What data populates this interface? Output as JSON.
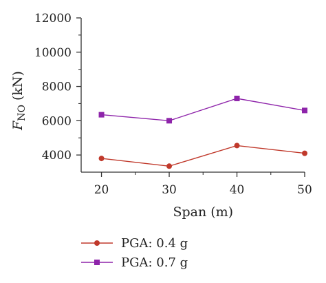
{
  "chart_data": {
    "type": "line",
    "x": [
      20,
      30,
      40,
      50
    ],
    "xticks": [
      "20",
      "30",
      "40",
      "50"
    ],
    "yticks": [
      "4000",
      "6000",
      "8000",
      "10000",
      "12000"
    ],
    "xlabel": "Span (m)",
    "ylabel_main": "F",
    "ylabel_sub": "NO",
    "ylabel_unit": " (kN)",
    "xlim": [
      17,
      50
    ],
    "ylim": [
      3000,
      12000
    ],
    "grid": false,
    "legend_position": "bottom-left",
    "series": [
      {
        "name": "PGA: 0.4 g",
        "marker": "circle",
        "color": "#c0392b",
        "values": [
          3800,
          3350,
          4550,
          4100
        ]
      },
      {
        "name": "PGA: 0.7 g",
        "marker": "square",
        "color": "#8e24aa",
        "values": [
          6350,
          6000,
          7300,
          6600
        ]
      }
    ]
  }
}
